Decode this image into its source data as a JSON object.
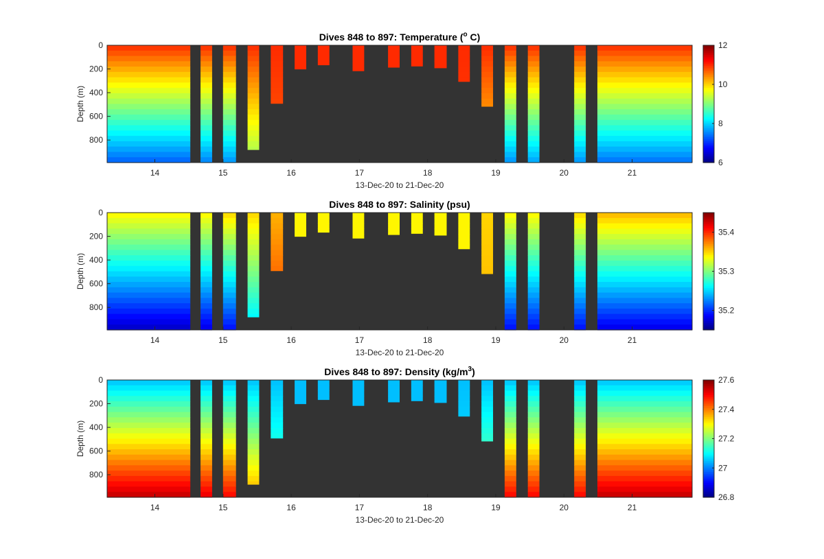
{
  "chart_data": [
    {
      "type": "heatmap",
      "title": "Dives 848 to 897: Temperature (°C)",
      "title_main": "Dives 848 to 897: Temperature (",
      "title_sup": "o",
      "title_end": " C)",
      "xlabel": "13-Dec-20 to 21-Dec-20",
      "ylabel": "Depth (m)",
      "x_ticks": [
        "14",
        "15",
        "16",
        "17",
        "18",
        "19",
        "20",
        "21"
      ],
      "y_ticks": [
        "0",
        "200",
        "400",
        "600",
        "800"
      ],
      "colorbar_ticks": [
        "6",
        "8",
        "10",
        "12"
      ],
      "clim": [
        6,
        12
      ],
      "colormap": "jet",
      "background_color": "#333333",
      "profiles": [
        {
          "start_day": 13.3,
          "end_day": 14.52,
          "max_depth_m": 990,
          "surface_value": 11.0,
          "bottom_value": 7.3
        },
        {
          "start_day": 14.67,
          "end_day": 14.84,
          "max_depth_m": 990,
          "surface_value": 11.0,
          "bottom_value": 7.5
        },
        {
          "start_day": 15.0,
          "end_day": 15.19,
          "max_depth_m": 990,
          "surface_value": 11.0,
          "bottom_value": 7.6
        },
        {
          "start_day": 15.36,
          "end_day": 15.53,
          "max_depth_m": 880,
          "surface_value": 11.0,
          "bottom_value": 9.1
        },
        {
          "start_day": 15.7,
          "end_day": 15.88,
          "max_depth_m": 490,
          "surface_value": 11.0,
          "bottom_value": 10.7
        },
        {
          "start_day": 16.05,
          "end_day": 16.22,
          "max_depth_m": 200,
          "surface_value": 11.0,
          "bottom_value": 11.0
        },
        {
          "start_day": 16.39,
          "end_day": 16.56,
          "max_depth_m": 165,
          "surface_value": 11.0,
          "bottom_value": 11.0
        },
        {
          "start_day": 16.9,
          "end_day": 17.07,
          "max_depth_m": 215,
          "surface_value": 11.0,
          "bottom_value": 11.0
        },
        {
          "start_day": 17.42,
          "end_day": 17.59,
          "max_depth_m": 185,
          "surface_value": 11.0,
          "bottom_value": 11.0
        },
        {
          "start_day": 17.76,
          "end_day": 17.93,
          "max_depth_m": 175,
          "surface_value": 11.0,
          "bottom_value": 11.0
        },
        {
          "start_day": 18.1,
          "end_day": 18.28,
          "max_depth_m": 190,
          "surface_value": 11.0,
          "bottom_value": 11.0
        },
        {
          "start_day": 18.45,
          "end_day": 18.62,
          "max_depth_m": 305,
          "surface_value": 11.0,
          "bottom_value": 10.9
        },
        {
          "start_day": 18.79,
          "end_day": 18.96,
          "max_depth_m": 515,
          "surface_value": 11.0,
          "bottom_value": 9.9
        },
        {
          "start_day": 19.13,
          "end_day": 19.3,
          "max_depth_m": 990,
          "surface_value": 11.0,
          "bottom_value": 7.6
        },
        {
          "start_day": 19.47,
          "end_day": 19.64,
          "max_depth_m": 990,
          "surface_value": 11.0,
          "bottom_value": 7.7
        },
        {
          "start_day": 20.15,
          "end_day": 20.32,
          "max_depth_m": 990,
          "surface_value": 11.0,
          "bottom_value": 7.6
        },
        {
          "start_day": 20.49,
          "end_day": 21.88,
          "max_depth_m": 990,
          "surface_value": 11.0,
          "bottom_value": 7.4
        }
      ]
    },
    {
      "type": "heatmap",
      "title": "Dives 848 to 897: Salinity (psu)",
      "xlabel": "13-Dec-20 to 21-Dec-20",
      "ylabel": "Depth (m)",
      "x_ticks": [
        "14",
        "15",
        "16",
        "17",
        "18",
        "19",
        "20",
        "21"
      ],
      "y_ticks": [
        "0",
        "200",
        "400",
        "600",
        "800"
      ],
      "colorbar_ticks": [
        "35.2",
        "35.3",
        "35.4"
      ],
      "clim": [
        35.15,
        35.45
      ],
      "colormap": "jet",
      "background_color": "#333333",
      "profiles": [
        {
          "start_day": 13.3,
          "end_day": 14.52,
          "max_depth_m": 990,
          "surface_value": 35.34,
          "bottom_value": 35.17
        },
        {
          "start_day": 14.67,
          "end_day": 14.84,
          "max_depth_m": 990,
          "surface_value": 35.34,
          "bottom_value": 35.18
        },
        {
          "start_day": 15.0,
          "end_day": 15.19,
          "max_depth_m": 990,
          "surface_value": 35.35,
          "bottom_value": 35.19
        },
        {
          "start_day": 15.36,
          "end_day": 15.53,
          "max_depth_m": 880,
          "surface_value": 35.35,
          "bottom_value": 35.25
        },
        {
          "start_day": 15.7,
          "end_day": 15.88,
          "max_depth_m": 490,
          "surface_value": 35.36,
          "bottom_value": 35.4
        },
        {
          "start_day": 16.05,
          "end_day": 16.22,
          "max_depth_m": 200,
          "surface_value": 35.34,
          "bottom_value": 35.34
        },
        {
          "start_day": 16.39,
          "end_day": 16.56,
          "max_depth_m": 165,
          "surface_value": 35.34,
          "bottom_value": 35.34
        },
        {
          "start_day": 16.9,
          "end_day": 17.07,
          "max_depth_m": 215,
          "surface_value": 35.34,
          "bottom_value": 35.34
        },
        {
          "start_day": 17.42,
          "end_day": 17.59,
          "max_depth_m": 185,
          "surface_value": 35.34,
          "bottom_value": 35.34
        },
        {
          "start_day": 17.76,
          "end_day": 17.93,
          "max_depth_m": 175,
          "surface_value": 35.34,
          "bottom_value": 35.34
        },
        {
          "start_day": 18.1,
          "end_day": 18.28,
          "max_depth_m": 190,
          "surface_value": 35.34,
          "bottom_value": 35.34
        },
        {
          "start_day": 18.45,
          "end_day": 18.62,
          "max_depth_m": 305,
          "surface_value": 35.34,
          "bottom_value": 35.34
        },
        {
          "start_day": 18.79,
          "end_day": 18.96,
          "max_depth_m": 515,
          "surface_value": 35.35,
          "bottom_value": 35.36
        },
        {
          "start_day": 19.13,
          "end_day": 19.3,
          "max_depth_m": 990,
          "surface_value": 35.34,
          "bottom_value": 35.19
        },
        {
          "start_day": 19.47,
          "end_day": 19.64,
          "max_depth_m": 990,
          "surface_value": 35.34,
          "bottom_value": 35.19
        },
        {
          "start_day": 20.15,
          "end_day": 20.32,
          "max_depth_m": 990,
          "surface_value": 35.35,
          "bottom_value": 35.19
        },
        {
          "start_day": 20.49,
          "end_day": 21.88,
          "max_depth_m": 990,
          "surface_value": 35.36,
          "bottom_value": 35.18
        }
      ]
    },
    {
      "type": "heatmap",
      "title": "Dives 848 to 897: Density (kg/m³)",
      "title_main": "Dives 848 to 897: Density (kg/m",
      "title_sup": "3",
      "title_end": ")",
      "xlabel": "13-Dec-20 to 21-Dec-20",
      "ylabel": "Depth (m)",
      "x_ticks": [
        "14",
        "15",
        "16",
        "17",
        "18",
        "19",
        "20",
        "21"
      ],
      "y_ticks": [
        "0",
        "200",
        "400",
        "600",
        "800"
      ],
      "colorbar_ticks": [
        "26.8",
        "27",
        "27.2",
        "27.4",
        "27.6"
      ],
      "clim": [
        26.8,
        27.6
      ],
      "colormap": "jet",
      "background_color": "#333333",
      "profiles": [
        {
          "start_day": 13.3,
          "end_day": 14.52,
          "max_depth_m": 990,
          "surface_value": 27.05,
          "bottom_value": 27.55
        },
        {
          "start_day": 14.67,
          "end_day": 14.84,
          "max_depth_m": 990,
          "surface_value": 27.05,
          "bottom_value": 27.52
        },
        {
          "start_day": 15.0,
          "end_day": 15.19,
          "max_depth_m": 990,
          "surface_value": 27.05,
          "bottom_value": 27.5
        },
        {
          "start_day": 15.36,
          "end_day": 15.53,
          "max_depth_m": 880,
          "surface_value": 27.05,
          "bottom_value": 27.38
        },
        {
          "start_day": 15.7,
          "end_day": 15.88,
          "max_depth_m": 490,
          "surface_value": 27.05,
          "bottom_value": 27.18
        },
        {
          "start_day": 16.05,
          "end_day": 16.22,
          "max_depth_m": 200,
          "surface_value": 27.05,
          "bottom_value": 27.05
        },
        {
          "start_day": 16.39,
          "end_day": 16.56,
          "max_depth_m": 165,
          "surface_value": 27.05,
          "bottom_value": 27.05
        },
        {
          "start_day": 16.9,
          "end_day": 17.07,
          "max_depth_m": 215,
          "surface_value": 27.05,
          "bottom_value": 27.05
        },
        {
          "start_day": 17.42,
          "end_day": 17.59,
          "max_depth_m": 185,
          "surface_value": 27.05,
          "bottom_value": 27.05
        },
        {
          "start_day": 17.76,
          "end_day": 17.93,
          "max_depth_m": 175,
          "surface_value": 27.05,
          "bottom_value": 27.05
        },
        {
          "start_day": 18.1,
          "end_day": 18.28,
          "max_depth_m": 190,
          "surface_value": 27.05,
          "bottom_value": 27.05
        },
        {
          "start_day": 18.45,
          "end_day": 18.62,
          "max_depth_m": 305,
          "surface_value": 27.05,
          "bottom_value": 27.08
        },
        {
          "start_day": 18.79,
          "end_day": 18.96,
          "max_depth_m": 515,
          "surface_value": 27.05,
          "bottom_value": 27.22
        },
        {
          "start_day": 19.13,
          "end_day": 19.3,
          "max_depth_m": 990,
          "surface_value": 27.05,
          "bottom_value": 27.5
        },
        {
          "start_day": 19.47,
          "end_day": 19.64,
          "max_depth_m": 990,
          "surface_value": 27.05,
          "bottom_value": 27.5
        },
        {
          "start_day": 20.15,
          "end_day": 20.32,
          "max_depth_m": 990,
          "surface_value": 27.05,
          "bottom_value": 27.5
        },
        {
          "start_day": 20.49,
          "end_day": 21.88,
          "max_depth_m": 990,
          "surface_value": 27.05,
          "bottom_value": 27.55
        }
      ]
    }
  ]
}
